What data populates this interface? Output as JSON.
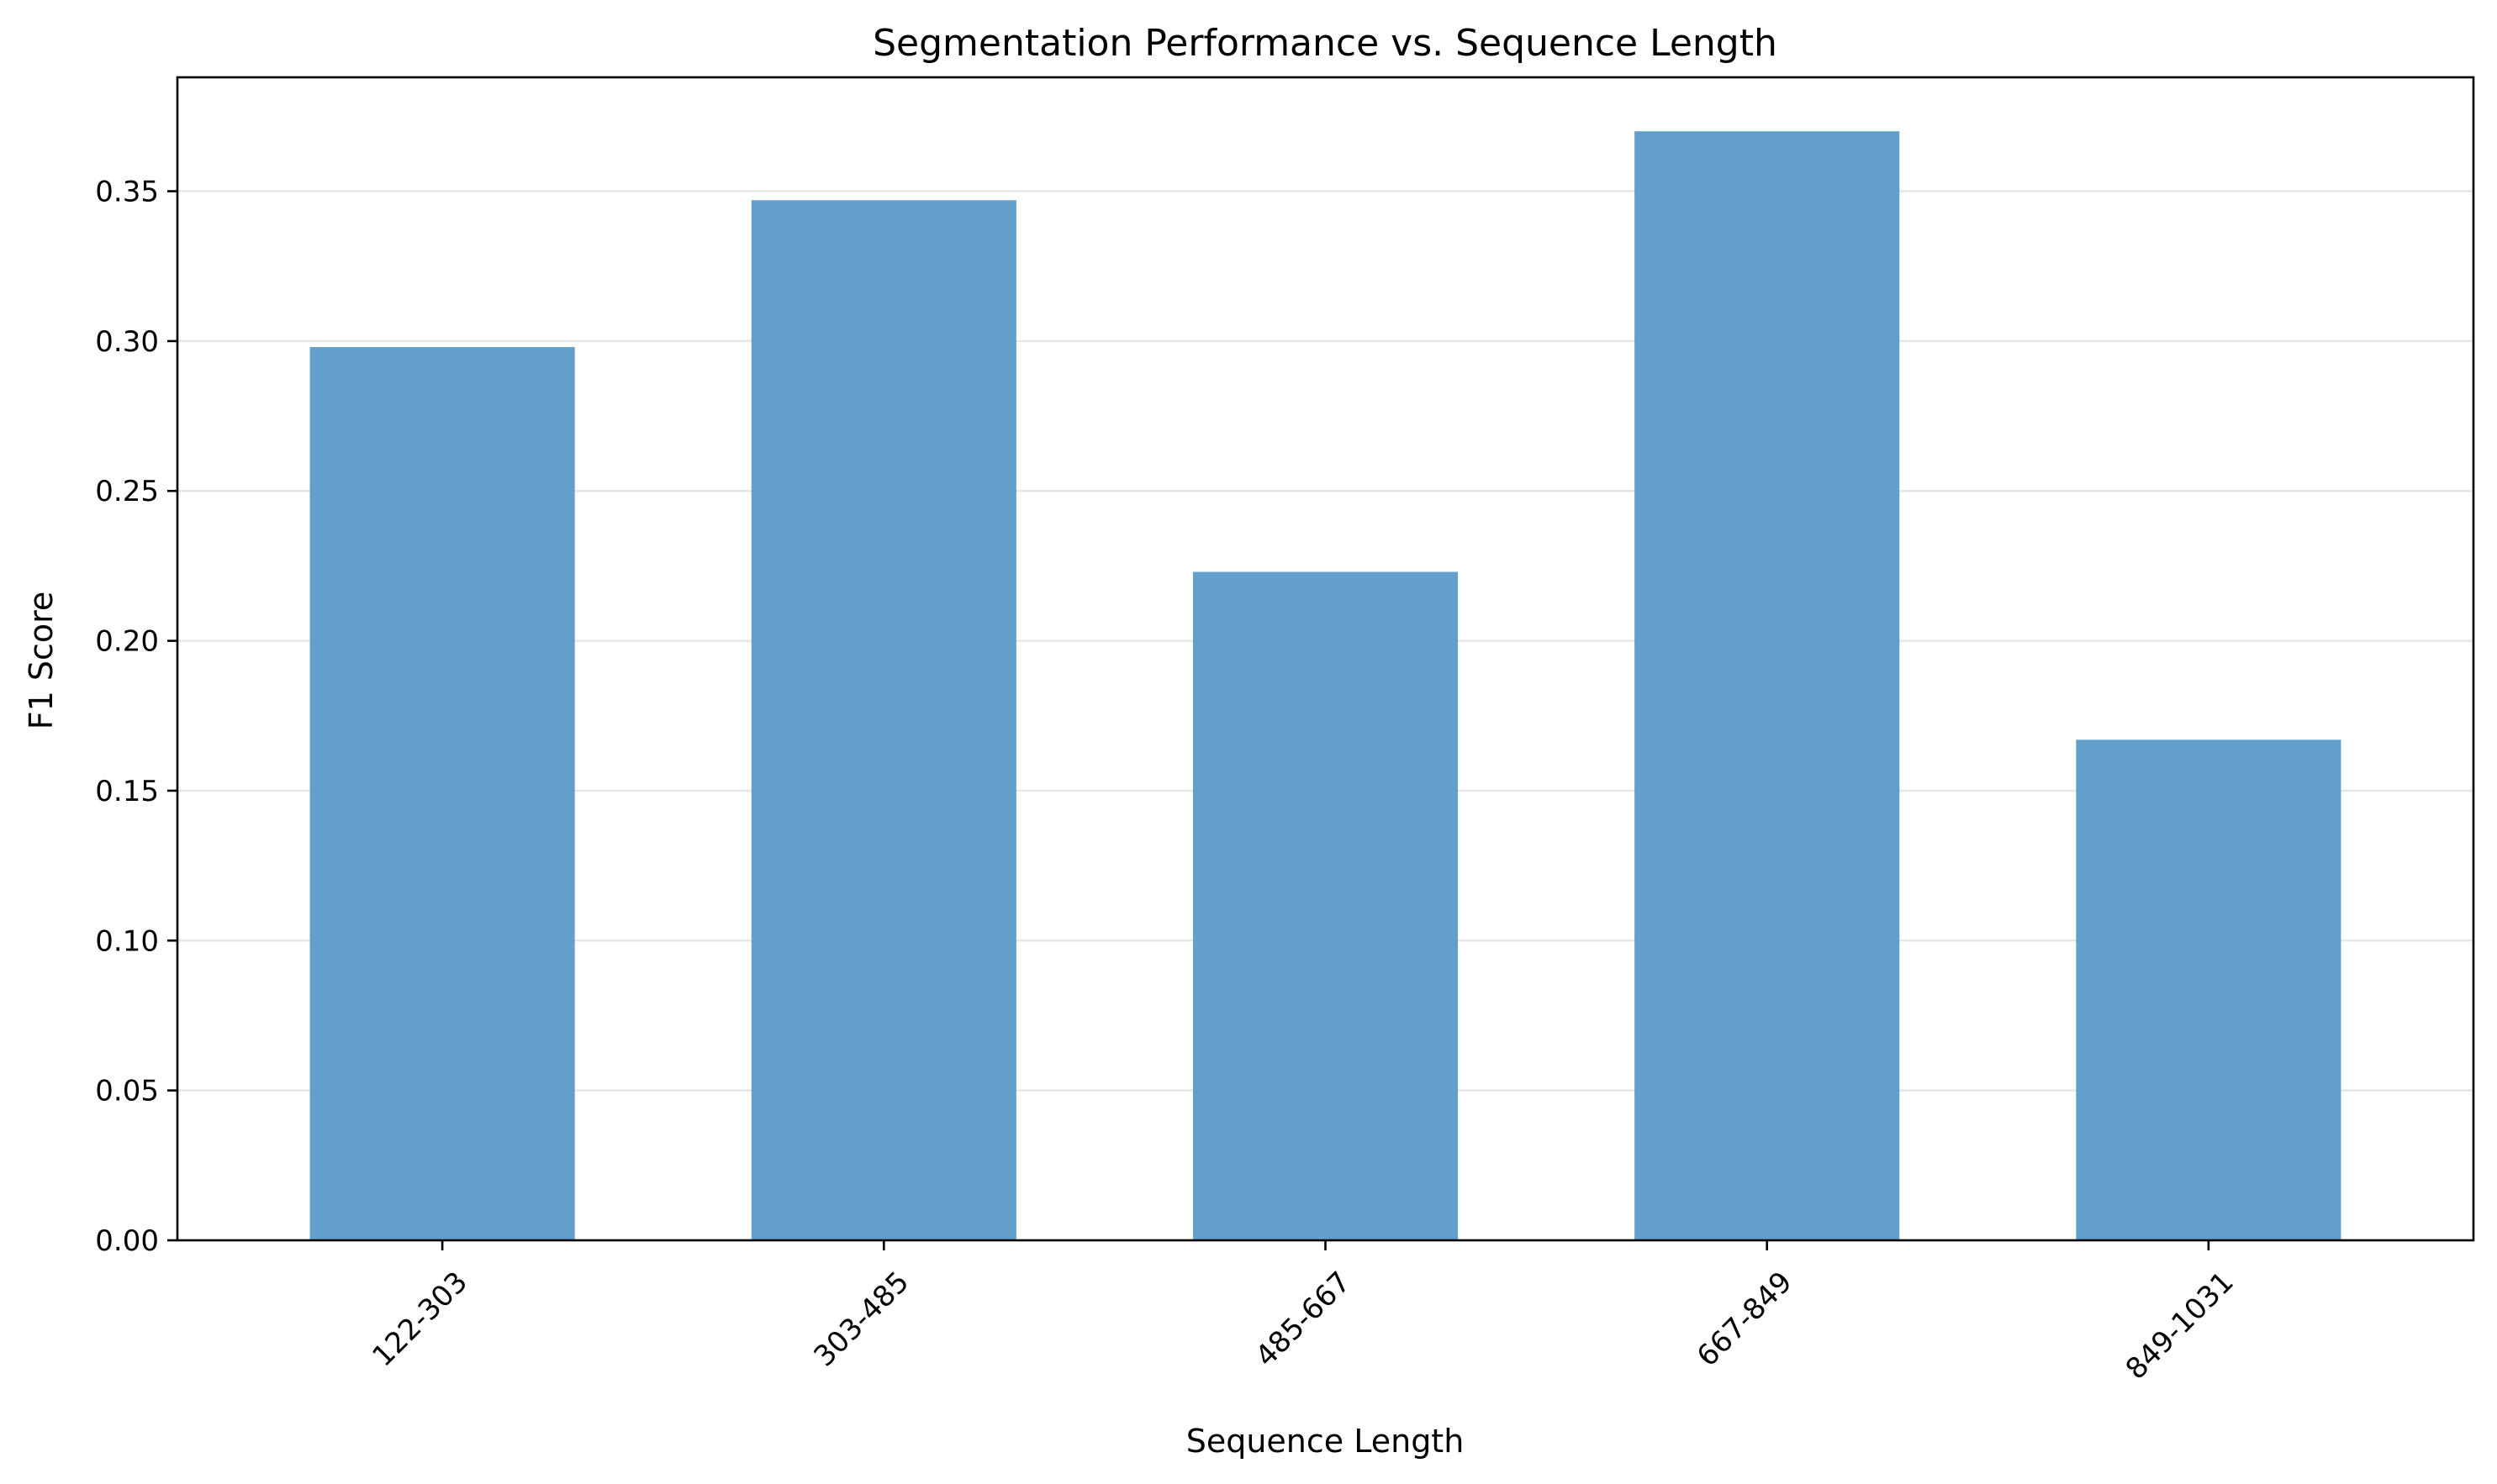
{
  "chart_data": {
    "type": "bar",
    "title": "Segmentation Performance vs. Sequence Length",
    "xlabel": "Sequence Length",
    "ylabel": "F1 Score",
    "categories": [
      "122-303",
      "303-485",
      "485-667",
      "667-849",
      "849-1031"
    ],
    "values": [
      0.298,
      0.347,
      0.223,
      0.37,
      0.167
    ],
    "ylim": [
      0,
      0.388
    ],
    "yticks": [
      "0.00",
      "0.05",
      "0.10",
      "0.15",
      "0.20",
      "0.25",
      "0.30",
      "0.35"
    ],
    "grid": "y",
    "legend": "none",
    "bar_color": "#62a0cb"
  }
}
